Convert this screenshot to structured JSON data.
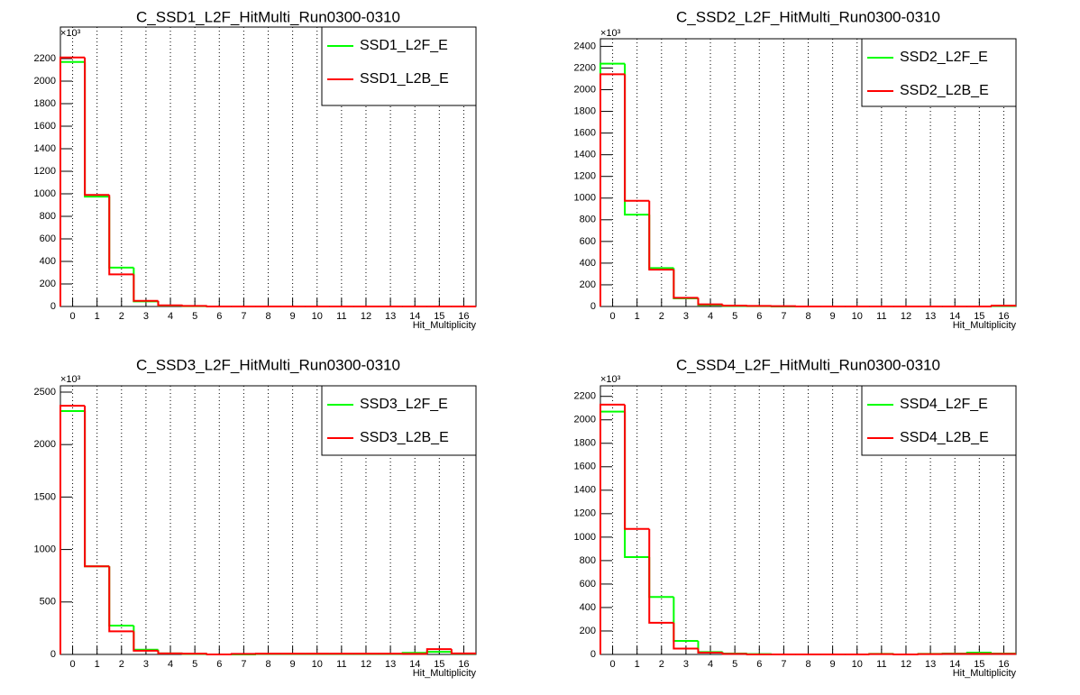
{
  "chart_data": [
    {
      "type": "histogram-step",
      "title": "C_SSD1_L2F_HitMulti_Run0300-0310",
      "x_label": "Hit_Multiplicity",
      "y_multiplier": "×10³",
      "x": [
        0,
        1,
        2,
        3,
        4,
        5,
        6,
        7,
        8,
        9,
        10,
        11,
        12,
        13,
        14,
        15,
        16
      ],
      "xlim": [
        -0.5,
        16.5
      ],
      "xticks": [
        0,
        1,
        2,
        3,
        4,
        5,
        6,
        7,
        8,
        9,
        10,
        11,
        12,
        13,
        14,
        15,
        16
      ],
      "ylim": [
        0,
        2480
      ],
      "yticks": [
        0,
        200,
        400,
        600,
        800,
        1000,
        1200,
        1400,
        1600,
        1800,
        2000,
        2200
      ],
      "grid_x": true,
      "legend": "top-right",
      "series": [
        {
          "name": "SSD1_L2F_E",
          "color": "#00ff00",
          "values": [
            2170,
            975,
            345,
            45,
            8,
            3,
            0,
            0,
            0,
            0,
            0,
            0,
            0,
            0,
            0,
            0,
            0
          ]
        },
        {
          "name": "SSD1_L2B_E",
          "color": "#ff0000",
          "values": [
            2210,
            990,
            285,
            50,
            10,
            5,
            0,
            0,
            0,
            0,
            0,
            0,
            0,
            0,
            0,
            0,
            0
          ]
        }
      ]
    },
    {
      "type": "histogram-step",
      "title": "C_SSD2_L2F_HitMulti_Run0300-0310",
      "x_label": "Hit_Multiplicity",
      "y_multiplier": "×10³",
      "x": [
        0,
        1,
        2,
        3,
        4,
        5,
        6,
        7,
        8,
        9,
        10,
        11,
        12,
        13,
        14,
        15,
        16
      ],
      "xlim": [
        -0.5,
        16.5
      ],
      "xticks": [
        0,
        1,
        2,
        3,
        4,
        5,
        6,
        7,
        8,
        9,
        10,
        11,
        12,
        13,
        14,
        15,
        16
      ],
      "ylim": [
        0,
        2470
      ],
      "yticks": [
        0,
        200,
        400,
        600,
        800,
        1000,
        1200,
        1400,
        1600,
        1800,
        2000,
        2200,
        2400
      ],
      "grid_x": true,
      "legend": "top-right",
      "series": [
        {
          "name": "SSD2_L2F_E",
          "color": "#00ff00",
          "values": [
            2240,
            847,
            355,
            75,
            15,
            5,
            3,
            0,
            0,
            0,
            0,
            0,
            0,
            0,
            0,
            0,
            5
          ]
        },
        {
          "name": "SSD2_L2B_E",
          "color": "#ff0000",
          "values": [
            2143,
            975,
            340,
            80,
            20,
            8,
            5,
            3,
            0,
            0,
            0,
            0,
            0,
            0,
            0,
            0,
            8
          ]
        }
      ]
    },
    {
      "type": "histogram-step",
      "title": "C_SSD3_L2F_HitMulti_Run0300-0310",
      "x_label": "Hit_Multiplicity",
      "y_multiplier": "×10³",
      "x": [
        0,
        1,
        2,
        3,
        4,
        5,
        6,
        7,
        8,
        9,
        10,
        11,
        12,
        13,
        14,
        15,
        16
      ],
      "xlim": [
        -0.5,
        16.5
      ],
      "xticks": [
        0,
        1,
        2,
        3,
        4,
        5,
        6,
        7,
        8,
        9,
        10,
        11,
        12,
        13,
        14,
        15,
        16
      ],
      "ylim": [
        0,
        2560
      ],
      "yticks": [
        0,
        500,
        1000,
        1500,
        2000,
        2500
      ],
      "grid_x": true,
      "legend": "top-right",
      "series": [
        {
          "name": "SSD3_L2F_E",
          "color": "#00ff00",
          "values": [
            2320,
            840,
            275,
            45,
            10,
            5,
            0,
            0,
            5,
            5,
            5,
            5,
            5,
            5,
            15,
            25,
            8
          ]
        },
        {
          "name": "SSD3_L2B_E",
          "color": "#ff0000",
          "values": [
            2370,
            840,
            220,
            35,
            10,
            8,
            0,
            5,
            8,
            8,
            8,
            8,
            8,
            8,
            5,
            50,
            10
          ]
        }
      ]
    },
    {
      "type": "histogram-step",
      "title": "C_SSD4_L2F_HitMulti_Run0300-0310",
      "x_label": "Hit_Multiplicity",
      "y_multiplier": "×10³",
      "x": [
        0,
        1,
        2,
        3,
        4,
        5,
        6,
        7,
        8,
        9,
        10,
        11,
        12,
        13,
        14,
        15,
        16
      ],
      "xlim": [
        -0.5,
        16.5
      ],
      "xticks": [
        0,
        1,
        2,
        3,
        4,
        5,
        6,
        7,
        8,
        9,
        10,
        11,
        12,
        13,
        14,
        15,
        16
      ],
      "ylim": [
        0,
        2290
      ],
      "yticks": [
        0,
        200,
        400,
        600,
        800,
        1000,
        1200,
        1400,
        1600,
        1800,
        2000,
        2200
      ],
      "grid_x": true,
      "legend": "top-right",
      "series": [
        {
          "name": "SSD4_L2F_E",
          "color": "#00ff00",
          "values": [
            2070,
            830,
            490,
            115,
            20,
            8,
            3,
            0,
            0,
            0,
            0,
            5,
            0,
            5,
            8,
            15,
            8
          ]
        },
        {
          "name": "SSD4_L2B_E",
          "color": "#ff0000",
          "values": [
            2130,
            1070,
            270,
            50,
            15,
            5,
            0,
            0,
            0,
            0,
            0,
            3,
            0,
            3,
            5,
            5,
            5
          ]
        }
      ]
    }
  ]
}
